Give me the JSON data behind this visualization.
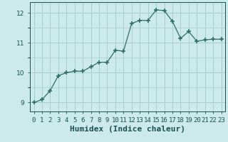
{
  "x": [
    0,
    1,
    2,
    3,
    4,
    5,
    6,
    7,
    8,
    9,
    10,
    11,
    12,
    13,
    14,
    15,
    16,
    17,
    18,
    19,
    20,
    21,
    22,
    23
  ],
  "y": [
    9.0,
    9.1,
    9.4,
    9.9,
    10.0,
    10.05,
    10.05,
    10.2,
    10.35,
    10.35,
    10.75,
    10.72,
    11.65,
    11.75,
    11.75,
    12.1,
    12.08,
    11.72,
    11.15,
    11.38,
    11.05,
    11.1,
    11.12,
    11.12
  ],
  "line_color": "#2d7068",
  "marker": "+",
  "marker_size": 4,
  "marker_lw": 1.2,
  "bg_color": "#cceaea",
  "grid_color": "#aacece",
  "xlabel": "Humidex (Indice chaleur)",
  "xlim": [
    -0.5,
    23.5
  ],
  "ylim": [
    8.7,
    12.35
  ],
  "yticks": [
    9,
    10,
    11,
    12
  ],
  "xtick_labels": [
    "0",
    "1",
    "2",
    "3",
    "4",
    "5",
    "6",
    "7",
    "8",
    "9",
    "10",
    "11",
    "12",
    "13",
    "14",
    "15",
    "16",
    "17",
    "18",
    "19",
    "20",
    "21",
    "22",
    "23"
  ],
  "font_color": "#1a5050",
  "tick_fontsize": 6.5,
  "xlabel_fontsize": 8
}
